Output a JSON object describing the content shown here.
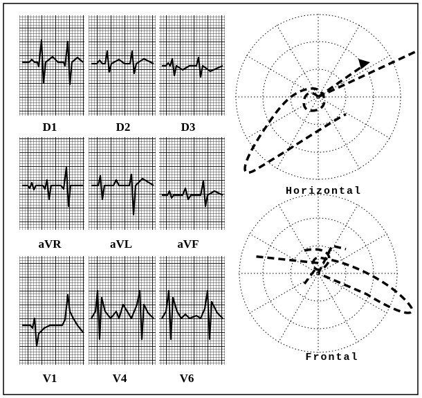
{
  "leads": [
    "D1",
    "D2",
    "D3",
    "aVR",
    "aVL",
    "aVF",
    "V1",
    "V4",
    "V6"
  ],
  "vector_loops": [
    "Horizontal",
    "Frontal"
  ]
}
